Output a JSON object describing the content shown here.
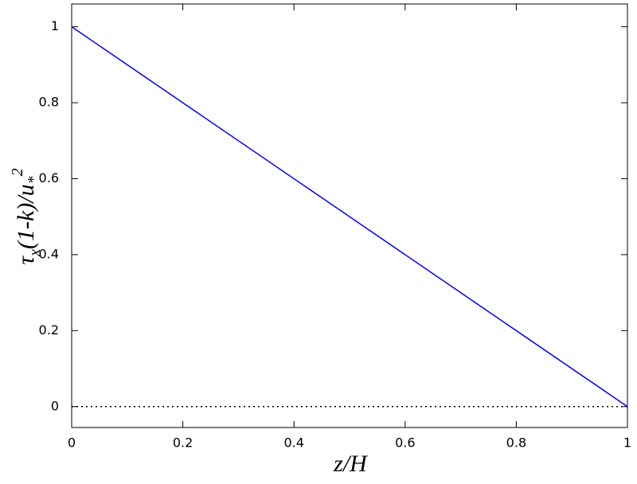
{
  "chart_data": {
    "type": "line",
    "xlabel": "z/H",
    "ylabel": [
      "τ",
      "x",
      "(1-k)/",
      "u",
      "*",
      "2"
    ],
    "x": [
      0,
      1
    ],
    "series": [
      {
        "color": "#0000ff",
        "values": [
          1,
          0
        ]
      }
    ],
    "reference_line": {
      "y": 0,
      "style": "dotted",
      "color": "#000000"
    },
    "xlim": [
      0,
      1
    ],
    "xticks": [
      0,
      0.2,
      0.4,
      0.6,
      0.8,
      1
    ],
    "ylim": [
      -0.055,
      1.06
    ],
    "yticks": [
      0,
      0.2,
      0.4,
      0.6,
      0.8,
      1
    ],
    "grid": false
  }
}
